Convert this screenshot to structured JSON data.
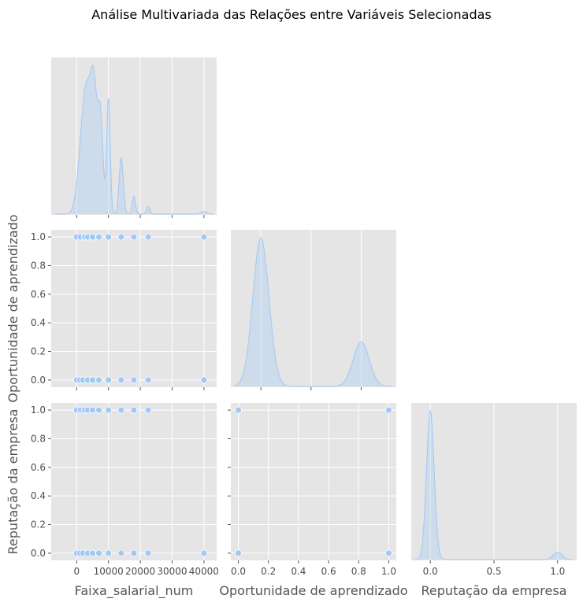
{
  "figure": {
    "title": "Análise Multivariada das Relações entre Variáveis Selecionadas"
  },
  "colors": {
    "panel_background": "#e5e5e5",
    "grid": "#ffffff",
    "series": "#a1c9f4",
    "kde_fill": "#a1c9f4",
    "point_edge": "#ffffff",
    "tick_text": "#4d4d4d",
    "label_text": "#555555"
  },
  "chart_data": {
    "type": "scatter",
    "style": "pairplot (corner), KDE on diagonal",
    "grid": true,
    "legend": "none",
    "variables": [
      {
        "label": "Faixa_salarial_num",
        "lim": [
          -8000,
          44000
        ],
        "ticks": [
          0,
          10000,
          20000,
          30000,
          40000
        ],
        "tick_labels": [
          "0",
          "10000",
          "20000",
          "30000",
          "40000"
        ]
      },
      {
        "label": "Oportunidade de aprendizado",
        "lim": [
          -0.05,
          1.05
        ],
        "ticks": [
          0,
          0.2,
          0.4,
          0.6,
          0.8,
          1.0
        ],
        "tick_labels": [
          "0.0",
          "0.2",
          "0.4",
          "0.6",
          "0.8",
          "1.0"
        ]
      },
      {
        "label": "Reputação da empresa",
        "lim": [
          -0.05,
          1.05
        ],
        "ticks": [
          0,
          0.2,
          0.4,
          0.6,
          0.8,
          1.0
        ],
        "tick_labels": [
          "0.0",
          "0.2",
          "0.4",
          "0.6",
          "0.8",
          "1.0"
        ]
      }
    ],
    "diag_xlim": [
      [
        -8000,
        44000
      ],
      [
        -0.3,
        1.35
      ],
      [
        -0.15,
        1.15
      ]
    ],
    "diag_xticks": [
      [
        0,
        10000,
        20000,
        30000,
        40000
      ],
      [
        0,
        0.5,
        1.0
      ],
      [
        0,
        0.5,
        1.0
      ]
    ],
    "diag_xtick_labels": [
      [
        "0",
        "10000",
        "20000",
        "30000",
        "40000"
      ],
      [
        "0.0",
        "0.5",
        "1.0"
      ],
      [
        "0.0",
        "0.5",
        "1.0"
      ]
    ],
    "kde": [
      {
        "var": "Faixa_salarial_num",
        "peaks": [
          {
            "mu": 3000,
            "sigma": 1800,
            "w": 0.5
          },
          {
            "mu": 5500,
            "sigma": 1000,
            "w": 0.35
          },
          {
            "mu": 7500,
            "sigma": 800,
            "w": 0.35
          },
          {
            "mu": 10000,
            "sigma": 550,
            "w": 0.45
          },
          {
            "mu": 14000,
            "sigma": 650,
            "w": 0.22
          },
          {
            "mu": 18000,
            "sigma": 500,
            "w": 0.07
          },
          {
            "mu": 22500,
            "sigma": 500,
            "w": 0.03
          },
          {
            "mu": 40000,
            "sigma": 900,
            "w": 0.01
          }
        ]
      },
      {
        "var": "Oportunidade de aprendizado",
        "peaks": [
          {
            "mu": 0,
            "sigma": 0.08,
            "w": 1.0
          },
          {
            "mu": 1,
            "sigma": 0.08,
            "w": 0.3
          }
        ]
      },
      {
        "var": "Reputação da empresa",
        "peaks": [
          {
            "mu": 0,
            "sigma": 0.03,
            "w": 1.0
          },
          {
            "mu": 1,
            "sigma": 0.035,
            "w": 0.05
          }
        ]
      }
    ],
    "scatter": [
      {
        "row": 1,
        "col": 0,
        "points": [
          [
            0,
            1
          ],
          [
            1200,
            1
          ],
          [
            2500,
            1
          ],
          [
            3500,
            1
          ],
          [
            5000,
            1
          ],
          [
            7000,
            1
          ],
          [
            10000,
            1
          ],
          [
            14000,
            1
          ],
          [
            18000,
            1
          ],
          [
            22500,
            1
          ],
          [
            40000,
            1
          ],
          [
            0,
            0
          ],
          [
            1000,
            0
          ],
          [
            2000,
            0
          ],
          [
            3500,
            0
          ],
          [
            5000,
            0
          ],
          [
            7000,
            0
          ],
          [
            10000,
            0
          ],
          [
            14000,
            0
          ],
          [
            18000,
            0
          ],
          [
            22500,
            0
          ],
          [
            40000,
            0
          ]
        ]
      },
      {
        "row": 2,
        "col": 0,
        "points": [
          [
            0,
            1
          ],
          [
            1200,
            1
          ],
          [
            2500,
            1
          ],
          [
            3500,
            1
          ],
          [
            5000,
            1
          ],
          [
            7000,
            1
          ],
          [
            10000,
            1
          ],
          [
            14000,
            1
          ],
          [
            18000,
            1
          ],
          [
            22500,
            1
          ],
          [
            0,
            0
          ],
          [
            1000,
            0
          ],
          [
            2000,
            0
          ],
          [
            3500,
            0
          ],
          [
            5000,
            0
          ],
          [
            7000,
            0
          ],
          [
            10000,
            0
          ],
          [
            14000,
            0
          ],
          [
            18000,
            0
          ],
          [
            22500,
            0
          ],
          [
            40000,
            0
          ]
        ]
      },
      {
        "row": 2,
        "col": 1,
        "points": [
          [
            0,
            1
          ],
          [
            1,
            1
          ],
          [
            0,
            0
          ],
          [
            1,
            0
          ]
        ]
      }
    ]
  }
}
